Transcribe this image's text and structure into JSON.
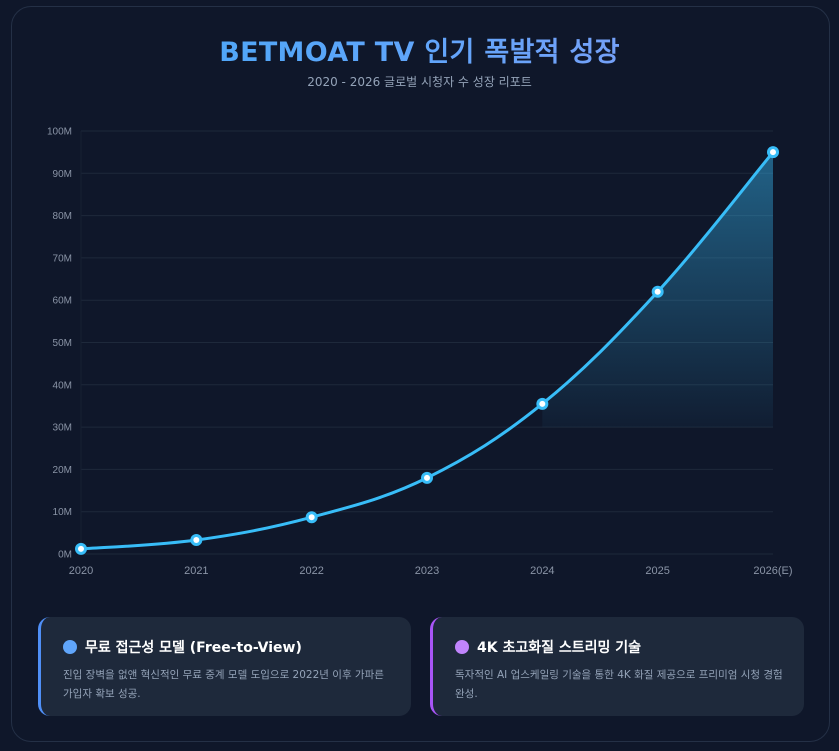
{
  "header": {
    "title": "BETMOAT TV 인기 폭발적 성장",
    "subtitle": "2020 - 2026 글로벌 시청자 수 성장 리포트"
  },
  "colors": {
    "background": "#0f172a",
    "line": "#38bdf8",
    "card_bg": "#1e293b",
    "accent_blue": "#60a5fa",
    "accent_purple": "#c084fc"
  },
  "chart_data": {
    "type": "line",
    "title": "BETMOAT TV 인기 폭발적 성장",
    "subtitle": "2020 - 2026 글로벌 시청자 수 성장 리포트",
    "xlabel": "",
    "ylabel": "",
    "categories": [
      "2020",
      "2021",
      "2022",
      "2023",
      "2024",
      "2025",
      "2026(E)"
    ],
    "series": [
      {
        "name": "글로벌 시청자 수",
        "values": [
          1.2,
          3.3,
          8.7,
          18,
          35.5,
          62,
          95
        ],
        "unit": "M"
      }
    ],
    "yticks": [
      "0M",
      "10M",
      "20M",
      "30M",
      "40M",
      "50M",
      "60M",
      "70M",
      "80M",
      "90M",
      "100M"
    ],
    "ylim": [
      0,
      100
    ],
    "grid": true,
    "legend": "none",
    "area_fill": "gradient under 2024-2026(E) segment"
  },
  "cards": [
    {
      "title": "무료 접근성 모델 (Free-to-View)",
      "description": "진입 장벽을 없앤 혁신적인 무료 중계 모델 도입으로 2022년 이후 가파른 가입자 확보 성공.",
      "dot_color": "#60a5fa"
    },
    {
      "title": "4K 초고화질 스트리밍 기술",
      "description": "독자적인 AI 업스케일링 기술을 통한 4K 화질 제공으로 프리미엄 시청 경험 완성.",
      "dot_color": "#c084fc"
    }
  ]
}
